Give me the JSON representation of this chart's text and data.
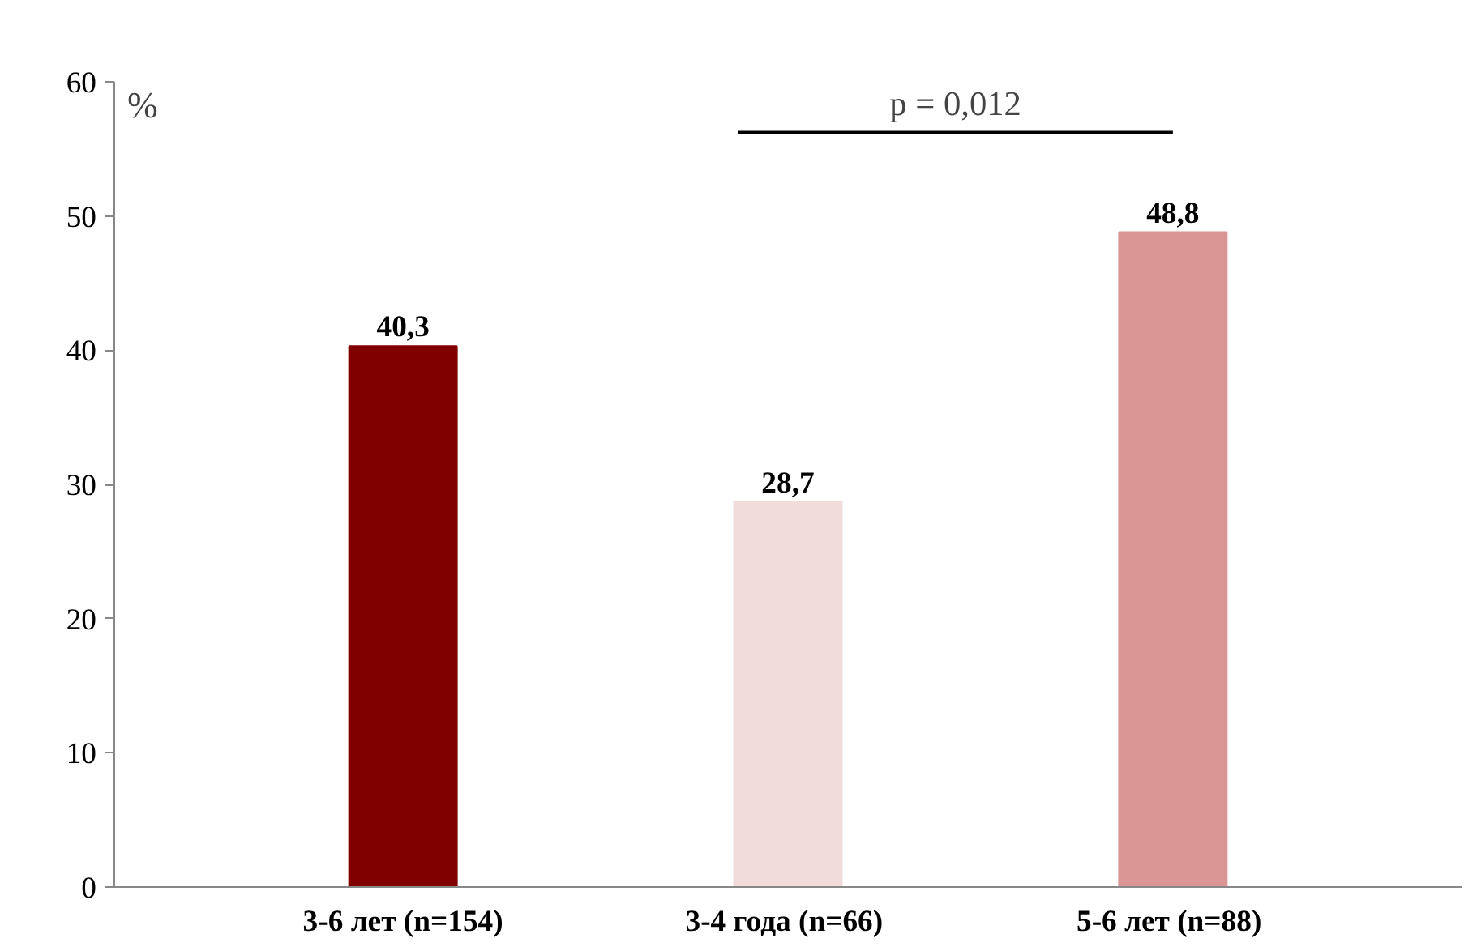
{
  "chart_data": {
    "type": "bar",
    "categories": [
      "3-6 лет (n=154)",
      "3-4  года (n=66)",
      "5-6 лет  (n=88)"
    ],
    "values": [
      40.3,
      28.7,
      48.8
    ],
    "colors": [
      "#800000",
      "#f2dcdb",
      "#d99694"
    ],
    "ylabel": "%",
    "ylim": [
      0,
      60
    ],
    "yticks": [
      0,
      10,
      20,
      30,
      40,
      50,
      60
    ],
    "value_labels": [
      "40,3",
      "28,7",
      "48,8"
    ],
    "grid": false,
    "annotations": [
      "p = 0,012"
    ]
  }
}
